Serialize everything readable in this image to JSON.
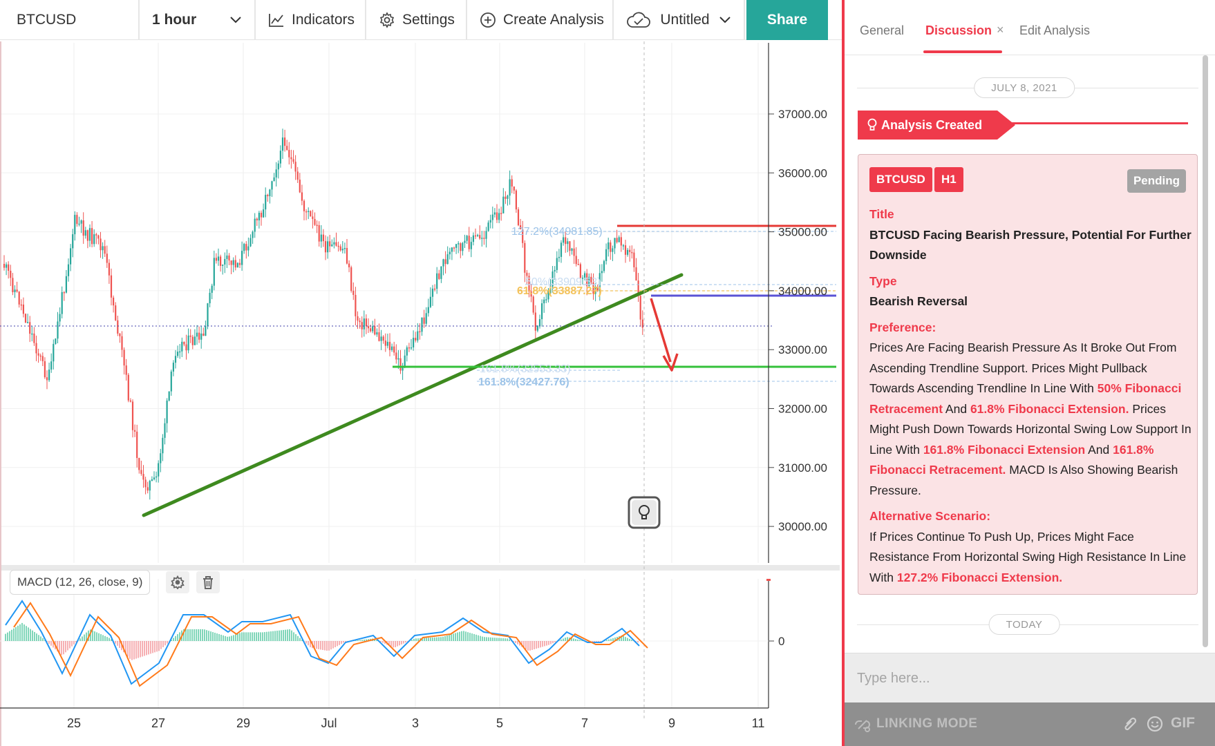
{
  "toolbar": {
    "symbol": "BTCUSD",
    "interval": "1 hour",
    "indicators": "Indicators",
    "settings": "Settings",
    "create_analysis": "Create Analysis",
    "layout_name": "Untitled",
    "share": "Share"
  },
  "chart": {
    "price_axis": [
      "37000.00",
      "36000.00",
      "35000.00",
      "34000.00",
      "33000.00",
      "32000.00",
      "31000.00",
      "30000.00"
    ],
    "time_axis": [
      "25",
      "27",
      "29",
      "Jul",
      "3",
      "5",
      "7",
      "9",
      "11"
    ],
    "fib_labels": [
      "127.2%(34981.85)",
      "61.8%(33887.27)",
      "50%(33909.53)",
      "161.8%(32427.76)",
      "161.8%(32553.33)"
    ],
    "macd_legend": "MACD (12, 26, close, 9)",
    "macd_zero": "0",
    "colors": {
      "up": "#26a69a",
      "down": "#ef5350",
      "trendline": "#3e8a1f",
      "resistance": "#e53935",
      "support": "#34c13a",
      "pivot": "#5a52d5",
      "macd": "#2196f3",
      "signal": "#ff7a1a"
    }
  },
  "panel": {
    "tabs": {
      "general": "General",
      "discussion": "Discussion",
      "close": "×",
      "edit": "Edit Analysis"
    },
    "date_top": "JULY 8, 2021",
    "analysis_created": "Analysis Created",
    "card": {
      "symbol": "BTCUSD",
      "timeframe": "H1",
      "status": "Pending",
      "title_label": "Title",
      "title": "BTCUSD Facing Bearish Pressure, Potential For Further Downside",
      "type_label": "Type",
      "type": "Bearish Reversal",
      "preference_label": "Preference:",
      "preference": [
        "Prices Are Facing Bearish Pressure As It Broke Out From Ascending Trendline Support. Prices Might Pullback Towards Ascending Trendline In Line With ",
        "50% Fibonacci Retracement",
        " And ",
        "61.8% Fibonacci Extension.",
        " Prices Might Push Down Towards Horizontal Swing Low Support In Line With ",
        "161.8% Fibonacci Extension",
        " And ",
        "161.8% Fibonacci Retracement.",
        " MACD Is Also Showing Bearish Pressure."
      ],
      "alternative_label": "Alternative Scenario:",
      "alternative": [
        "If Prices Continue To Push Up, Prices Might Face Resistance From Horizontal Swing High Resistance In Line With ",
        "127.2% Fibonacci Extension."
      ]
    },
    "date_bottom": "TODAY",
    "input_placeholder": "Type here...",
    "linking_mode": "LINKING MODE",
    "gif": "GIF"
  }
}
